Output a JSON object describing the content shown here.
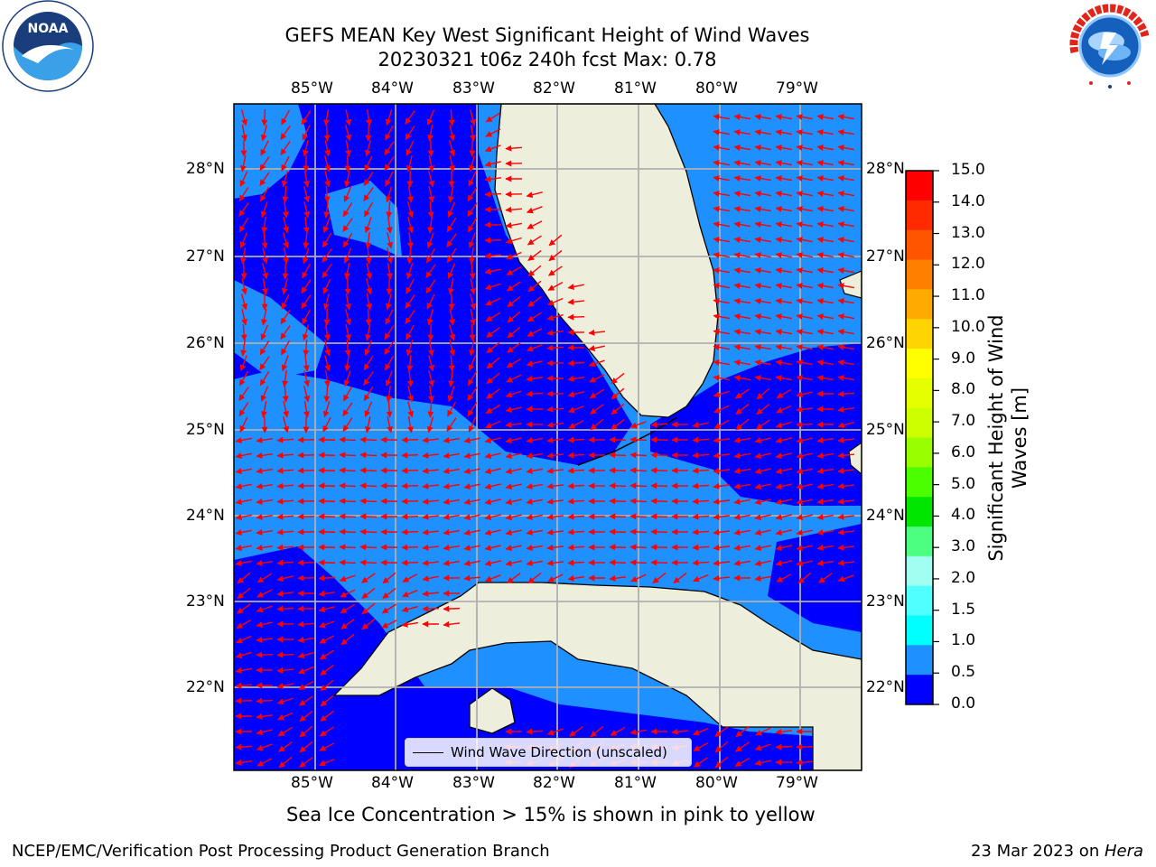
{
  "title": {
    "line1": "GEFS MEAN Key West Significant Height of Wind Waves",
    "line2": "20230321 t06z 240h fcst   Max: 0.78"
  },
  "map": {
    "lon_labels": [
      "85°W",
      "84°W",
      "83°W",
      "82°W",
      "81°W",
      "80°W",
      "79°W"
    ],
    "lat_labels": [
      "28°N",
      "27°N",
      "26°N",
      "25°N",
      "24°N",
      "23°N",
      "22°N"
    ],
    "legend_label": "Wind Wave Direction (unscaled)",
    "colors": {
      "deep_blue": "#0000ff",
      "light_blue": "#1e90ff",
      "land": "#eeeedd",
      "arrow": "#ff0000",
      "grid": "#b0b0b0"
    }
  },
  "colorbar": {
    "title": "Significant Height of Wind Waves [m]",
    "labels": [
      "15.0",
      "14.0",
      "13.0",
      "12.0",
      "11.0",
      "10.0",
      "9.0",
      "8.0",
      "7.0",
      "6.0",
      "5.0",
      "4.0",
      "3.0",
      "2.0",
      "1.5",
      "1.0",
      "0.5",
      "0.0"
    ],
    "colors": [
      "#ff0000",
      "#ff2a00",
      "#ff5500",
      "#ff8000",
      "#ffaa00",
      "#ffd400",
      "#ffff00",
      "#e6ff00",
      "#ccff00",
      "#99ff00",
      "#4cff00",
      "#00e600",
      "#4cff80",
      "#a0fff0",
      "#50ffff",
      "#00ffff",
      "#1e90ff",
      "#0000ff"
    ]
  },
  "note": "Sea Ice Concentration > 15% is shown in pink to yellow",
  "footer": {
    "left": "NCEP/EMC/Verification Post Processing Product Generation Branch",
    "date": "23 Mar 2023 on ",
    "host": "Hera"
  }
}
